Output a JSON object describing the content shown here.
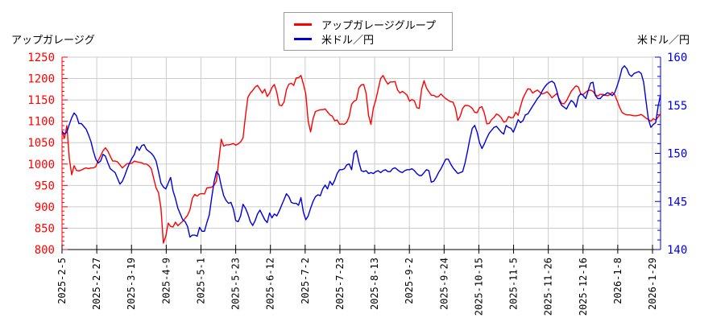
{
  "titles": {
    "left": "アップガレージグ",
    "right": "米ドル／円"
  },
  "legend": {
    "items": [
      {
        "label": "アップガレージグループ",
        "color": "#ff0000"
      },
      {
        "label": "米ドル／円",
        "color": "#0000dd"
      }
    ]
  },
  "chart_data": {
    "type": "line",
    "title": "",
    "x_tick_labels": [
      "2025-2-5",
      "2025-2-27",
      "2025-3-19",
      "2025-4-9",
      "2025-5-1",
      "2025-5-23",
      "2025-6-12",
      "2025-7-2",
      "2025-7-23",
      "2025-8-13",
      "2025-9-2",
      "2025-9-24",
      "2025-10-15",
      "2025-11-5",
      "2025-11-26",
      "2025-12-16",
      "2026-1-8",
      "2026-1-29"
    ],
    "left_axis": {
      "label": "アップガレージグ",
      "min": 800,
      "max": 1250,
      "step": 50,
      "minor_step": 10,
      "color": "#ff0000"
    },
    "right_axis": {
      "label": "米ドル／円",
      "min": 140,
      "max": 160,
      "step": 5,
      "minor_step": 1,
      "color": "#0000ee"
    },
    "grid": true,
    "grid_color": "#cccccc",
    "x_label_color": "#000000",
    "bottom_axis_color": "#000000",
    "legend_position": "top-center",
    "series": [
      {
        "name": "アップガレージグループ",
        "axis": "left",
        "color": "#ff0000",
        "values": [
          1075,
          1060,
          1090,
          1014,
          975,
          996,
          985,
          984,
          986,
          989,
          991,
          989,
          991,
          991,
          994,
          1008,
          1019,
          1031,
          1038,
          1030,
          1018,
          1007,
          1007,
          1005,
          998,
          991,
          996,
          1001,
          1001,
          1002,
          1007,
          1005,
          1004,
          1003,
          1000,
          1000,
          996,
          989,
          966,
          944,
          933,
          897,
          815,
          831,
          862,
          854,
          853,
          864,
          856,
          861,
          866,
          873,
          880,
          893,
          920,
          929,
          925,
          930,
          931,
          930,
          944,
          945,
          946,
          950,
          960,
          1010,
          1058,
          1042,
          1045,
          1045,
          1046,
          1048,
          1044,
          1047,
          1052,
          1061,
          1112,
          1156,
          1166,
          1172,
          1180,
          1184,
          1175,
          1166,
          1175,
          1158,
          1166,
          1179,
          1186,
          1168,
          1138,
          1136,
          1145,
          1174,
          1187,
          1189,
          1184,
          1201,
          1202,
          1207,
          1187,
          1164,
          1100,
          1075,
          1106,
          1123,
          1125,
          1127,
          1127,
          1129,
          1122,
          1115,
          1112,
          1101,
          1103,
          1093,
          1094,
          1093,
          1098,
          1111,
          1140,
          1147,
          1150,
          1178,
          1185,
          1186,
          1165,
          1114,
          1093,
          1131,
          1150,
          1175,
          1200,
          1207,
          1196,
          1187,
          1192,
          1192,
          1193,
          1174,
          1166,
          1170,
          1166,
          1161,
          1147,
          1151,
          1148,
          1132,
          1130,
          1175,
          1195,
          1178,
          1169,
          1161,
          1161,
          1157,
          1158,
          1164,
          1158,
          1153,
          1149,
          1146,
          1145,
          1131,
          1102,
          1112,
          1130,
          1137,
          1137,
          1135,
          1130,
          1121,
          1120,
          1132,
          1134,
          1119,
          1094,
          1095,
          1104,
          1109,
          1117,
          1114,
          1108,
          1098,
          1100,
          1111,
          1108,
          1109,
          1121,
          1114,
          1135,
          1154,
          1165,
          1176,
          1175,
          1166,
          1170,
          1173,
          1168,
          1164,
          1166,
          1169,
          1163,
          1155,
          1160,
          1165,
          1152,
          1142,
          1141,
          1148,
          1159,
          1170,
          1177,
          1183,
          1180,
          1163,
          1163,
          1168,
          1172,
          1173,
          1170,
          1162,
          1159,
          1163,
          1163,
          1161,
          1160,
          1162,
          1168,
          1162,
          1148,
          1133,
          1121,
          1117,
          1115,
          1115,
          1114,
          1113,
          1113,
          1114,
          1116,
          1112,
          1107,
          1104,
          1100,
          1106,
          1103,
          1110,
          1118
        ]
      },
      {
        "name": "米ドル／円",
        "axis": "right",
        "color": "#0000dd",
        "values": [
          152.3,
          152.0,
          152.2,
          153.0,
          153.7,
          154.2,
          153.9,
          153.1,
          153.1,
          152.8,
          152.5,
          151.9,
          151.2,
          150.2,
          149.4,
          149.0,
          149.2,
          149.9,
          149.7,
          149.0,
          148.4,
          148.2,
          148.0,
          147.4,
          146.8,
          147.1,
          147.7,
          148.4,
          149.0,
          149.5,
          149.9,
          150.7,
          150.3,
          150.8,
          150.9,
          150.4,
          150.2,
          150.0,
          149.7,
          149.2,
          148.1,
          146.9,
          146.5,
          146.3,
          146.9,
          147.5,
          146.1,
          145.3,
          144.3,
          143.7,
          143.1,
          142.9,
          142.4,
          141.3,
          141.5,
          141.5,
          141.4,
          142.3,
          141.9,
          141.9,
          142.8,
          143.6,
          145.4,
          147.0,
          148.1,
          147.8,
          146.6,
          145.6,
          145.1,
          144.8,
          144.9,
          144.2,
          143.0,
          142.9,
          143.5,
          144.7,
          144.3,
          143.7,
          142.9,
          142.5,
          143.0,
          143.7,
          144.1,
          143.6,
          143.1,
          142.8,
          143.8,
          143.3,
          143.7,
          143.5,
          144.0,
          144.6,
          145.2,
          145.8,
          145.5,
          144.9,
          144.8,
          144.8,
          144.6,
          145.4,
          143.9,
          143.1,
          143.5,
          144.3,
          145.0,
          145.5,
          145.7,
          145.6,
          146.3,
          146.7,
          146.3,
          147.1,
          146.7,
          147.2,
          147.9,
          148.3,
          148.3,
          148.4,
          148.8,
          148.9,
          148.3,
          150.0,
          150.3,
          149.1,
          148.2,
          148.1,
          148.2,
          147.9,
          148.0,
          147.9,
          148.1,
          148.2,
          148.0,
          148.2,
          148.3,
          148.1,
          148.1,
          148.4,
          148.5,
          148.3,
          148.1,
          148.0,
          148.2,
          148.3,
          148.3,
          148.4,
          148.2,
          147.9,
          147.7,
          147.7,
          148.0,
          148.3,
          148.2,
          147.0,
          147.1,
          147.5,
          148.0,
          148.4,
          148.9,
          149.4,
          149.4,
          148.9,
          148.5,
          148.2,
          147.9,
          148.0,
          148.1,
          149.0,
          150.2,
          151.5,
          152.6,
          152.9,
          152.2,
          151.1,
          150.5,
          151.0,
          151.6,
          152.1,
          152.4,
          152.7,
          152.8,
          152.5,
          152.2,
          152.0,
          152.9,
          152.7,
          152.6,
          152.2,
          152.8,
          153.5,
          153.2,
          153.4,
          154.0,
          154.1,
          154.5,
          154.9,
          155.3,
          155.7,
          156.0,
          156.5,
          156.9,
          157.2,
          157.4,
          157.5,
          157.3,
          156.5,
          155.5,
          155.0,
          154.8,
          154.6,
          155.1,
          155.5,
          155.3,
          154.8,
          155.9,
          156.2,
          156.0,
          155.7,
          156.5,
          157.3,
          157.4,
          156.0,
          155.7,
          155.7,
          156.0,
          156.1,
          156.3,
          156.2,
          156.0,
          156.3,
          157.0,
          157.8,
          158.8,
          159.1,
          158.8,
          158.2,
          158.0,
          158.3,
          158.4,
          158.5,
          158.3,
          157.4,
          155.4,
          153.5,
          152.7,
          153.0,
          153.2,
          154.9,
          156.1
        ]
      }
    ]
  }
}
